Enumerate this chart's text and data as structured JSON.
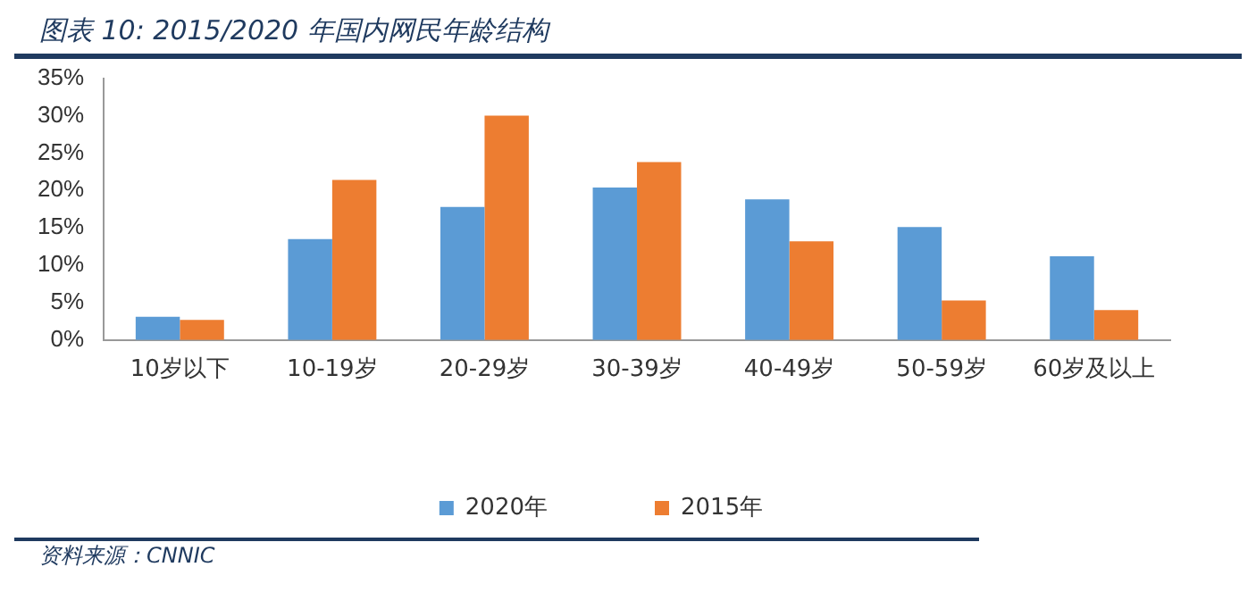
{
  "chart_data": {
    "type": "bar",
    "title": "图表 10:  2015/2020 年国内网民年龄结构",
    "categories": [
      "10岁以下",
      "10-19岁",
      "20-29岁",
      "30-39岁",
      "40-49岁",
      "50-59岁",
      "60岁及以上"
    ],
    "series": [
      {
        "name": "2020年",
        "color": "#5b9bd5",
        "values": [
          3.1,
          13.5,
          17.8,
          20.4,
          18.8,
          15.1,
          11.2
        ]
      },
      {
        "name": "2015年",
        "color": "#ed7d31",
        "values": [
          2.7,
          21.4,
          30.0,
          23.8,
          13.2,
          5.3,
          4.0
        ]
      }
    ],
    "ylim": [
      0,
      35
    ],
    "yticks": [
      {
        "value": 0,
        "label": "0%"
      },
      {
        "value": 5,
        "label": "5%"
      },
      {
        "value": 10,
        "label": "10%"
      },
      {
        "value": 15,
        "label": "15%"
      },
      {
        "value": 20,
        "label": "20%"
      },
      {
        "value": 25,
        "label": "25%"
      },
      {
        "value": 30,
        "label": "30%"
      },
      {
        "value": 35,
        "label": "35%"
      }
    ],
    "grid": false,
    "legend": "bottom",
    "annotations": [
      "资料来源：CNNIC"
    ]
  }
}
